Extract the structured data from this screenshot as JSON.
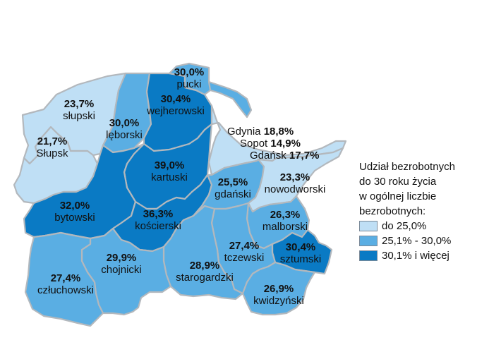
{
  "colors": {
    "low": "#bfdff5",
    "mid": "#5aaee3",
    "high": "#0a7ac4",
    "border": "#b3b8bd"
  },
  "districts": [
    {
      "id": "slupski",
      "name": "słupski",
      "value": "23,7%",
      "cls": "low"
    },
    {
      "id": "slupsk",
      "name": "Słupsk",
      "value": "21,7%",
      "cls": "low"
    },
    {
      "id": "leborski",
      "name": "lęborski",
      "value": "30,0%",
      "cls": "mid"
    },
    {
      "id": "wejherowski",
      "name": "wejherowski",
      "value": "30,4%",
      "cls": "high"
    },
    {
      "id": "pucki",
      "name": "pucki",
      "value": "30,0%",
      "cls": "mid"
    },
    {
      "id": "kartuski",
      "name": "kartuski",
      "value": "39,0%",
      "cls": "high"
    },
    {
      "id": "bytowski",
      "name": "bytowski",
      "value": "32,0%",
      "cls": "high"
    },
    {
      "id": "koscierski",
      "name": "kościerski",
      "value": "36,3%",
      "cls": "high"
    },
    {
      "id": "gdanski",
      "name": "gdański",
      "value": "25,5%",
      "cls": "mid"
    },
    {
      "id": "nowodworski",
      "name": "nowodworski",
      "value": "23,3%",
      "cls": "low"
    },
    {
      "id": "malborski",
      "name": "malborski",
      "value": "26,3%",
      "cls": "mid"
    },
    {
      "id": "tczewski",
      "name": "tczewski",
      "value": "27,4%",
      "cls": "mid"
    },
    {
      "id": "sztumski",
      "name": "sztumski",
      "value": "30,4%",
      "cls": "high"
    },
    {
      "id": "chojnicki",
      "name": "chojnicki",
      "value": "29,9%",
      "cls": "mid"
    },
    {
      "id": "czluchowski",
      "name": "człuchowski",
      "value": "27,4%",
      "cls": "mid"
    },
    {
      "id": "starogardzki",
      "name": "starogardzki",
      "value": "28,9%",
      "cls": "mid"
    },
    {
      "id": "kwidzynski",
      "name": "kwidzyński",
      "value": "26,9%",
      "cls": "mid"
    }
  ],
  "cities": [
    {
      "name": "Gdynia",
      "value": "18,8%"
    },
    {
      "name": "Sopot",
      "value": "14,9%"
    },
    {
      "name": "Gdańsk",
      "value": "17,7%"
    }
  ],
  "legend": {
    "title": [
      "Udział bezrobotnych",
      "do 30 roku życia",
      "w ogólnej liczbie",
      "bezrobotnych:"
    ],
    "items": [
      {
        "label": "do 25,0%",
        "cls": "low"
      },
      {
        "label": "25,1% - 30,0%",
        "cls": "mid"
      },
      {
        "label": "30,1% i więcej",
        "cls": "high"
      }
    ]
  }
}
